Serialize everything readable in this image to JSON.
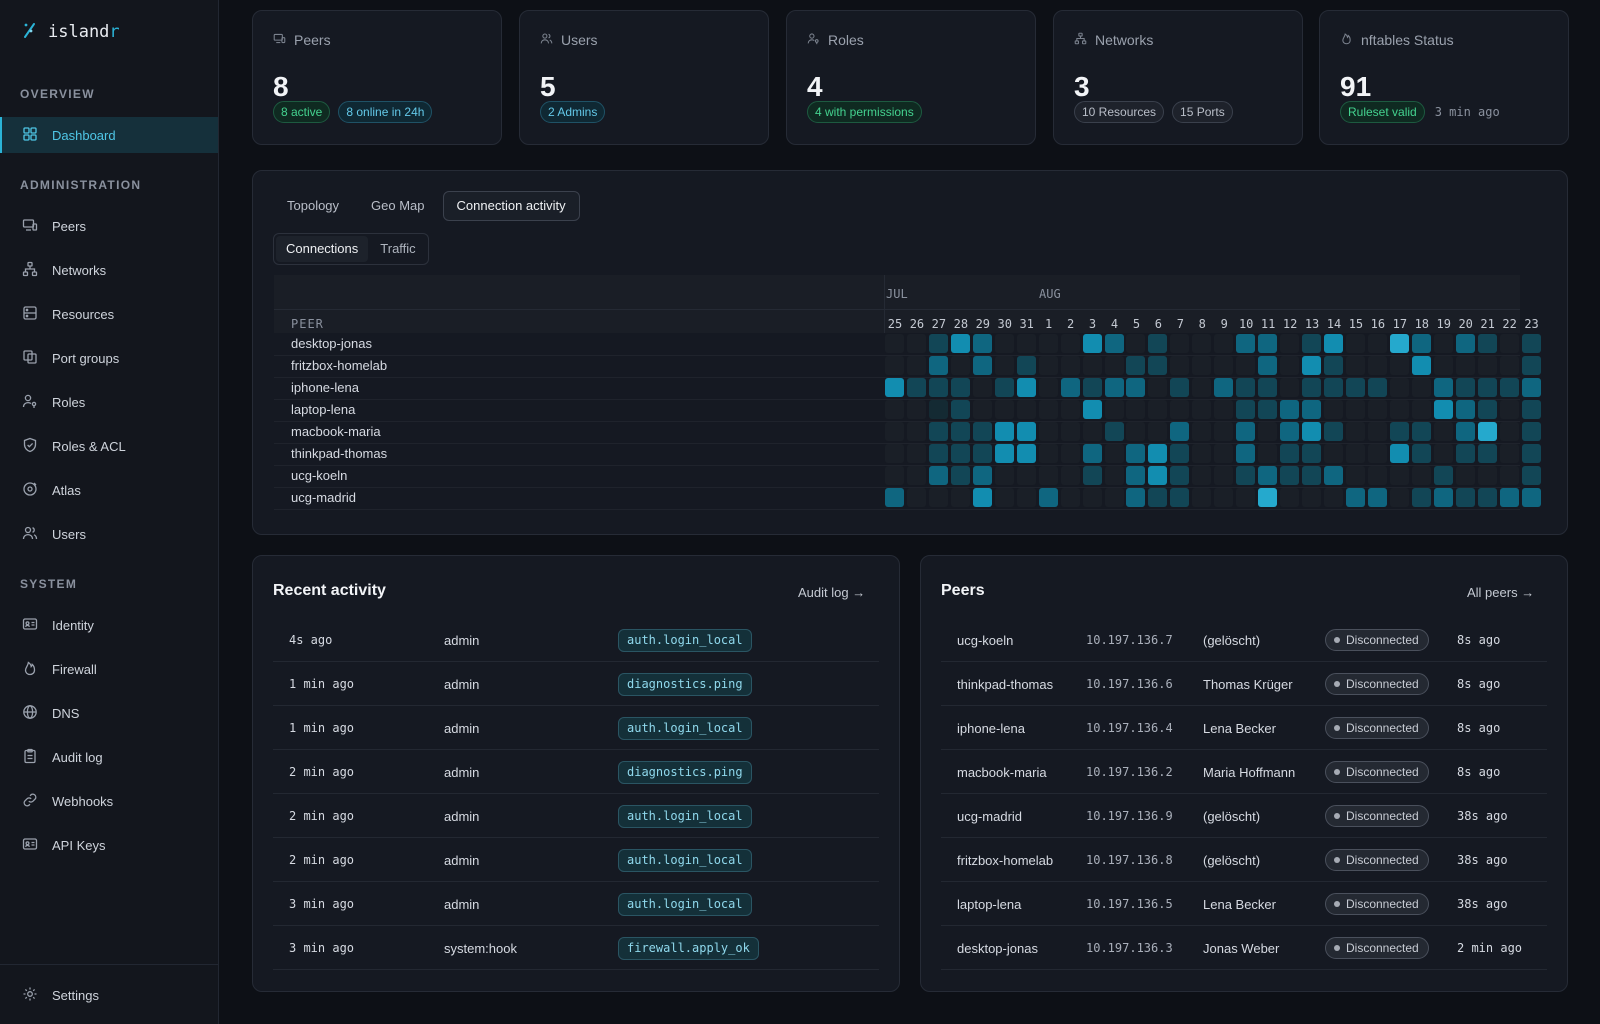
{
  "brand": {
    "name_main": "island",
    "name_accent": "r"
  },
  "nav": {
    "overview_label": "OVERVIEW",
    "admin_label": "ADMINISTRATION",
    "system_label": "SYSTEM",
    "overview": [
      {
        "label": "Dashboard",
        "icon": "grid-icon"
      }
    ],
    "admin": [
      {
        "label": "Peers",
        "icon": "devices-icon"
      },
      {
        "label": "Networks",
        "icon": "network-icon"
      },
      {
        "label": "Resources",
        "icon": "server-icon"
      },
      {
        "label": "Port groups",
        "icon": "copy-icon"
      },
      {
        "label": "Roles",
        "icon": "user-key-icon"
      },
      {
        "label": "Roles & ACL",
        "icon": "shield-icon"
      },
      {
        "label": "Atlas",
        "icon": "globe-dot-icon"
      },
      {
        "label": "Users",
        "icon": "users-icon"
      }
    ],
    "system": [
      {
        "label": "Identity",
        "icon": "id-card-icon"
      },
      {
        "label": "Firewall",
        "icon": "flame-icon"
      },
      {
        "label": "DNS",
        "icon": "globe-icon"
      },
      {
        "label": "Audit log",
        "icon": "clipboard-icon"
      },
      {
        "label": "Webhooks",
        "icon": "link-icon"
      },
      {
        "label": "API Keys",
        "icon": "id-card-icon"
      }
    ],
    "settings_label": "Settings"
  },
  "stats": [
    {
      "title": "Peers",
      "icon": "devices-icon",
      "value": "8",
      "badges": [
        {
          "text": "8 active",
          "kind": "green"
        },
        {
          "text": "8 online in 24h",
          "kind": "blue"
        }
      ],
      "time": ""
    },
    {
      "title": "Users",
      "icon": "users-icon",
      "value": "5",
      "badges": [
        {
          "text": "2 Admins",
          "kind": "blue"
        }
      ],
      "time": ""
    },
    {
      "title": "Roles",
      "icon": "user-key-icon",
      "value": "4",
      "badges": [
        {
          "text": "4 with permissions",
          "kind": "green"
        }
      ],
      "time": ""
    },
    {
      "title": "Networks",
      "icon": "network-icon",
      "value": "3",
      "badges": [
        {
          "text": "10 Resources",
          "kind": "gray"
        },
        {
          "text": "15 Ports",
          "kind": "gray"
        }
      ],
      "time": ""
    },
    {
      "title": "nftables Status",
      "icon": "flame-icon",
      "value": "91",
      "badges": [
        {
          "text": "Ruleset valid",
          "kind": "green"
        }
      ],
      "time": "3 min ago"
    }
  ],
  "tabs": [
    "Topology",
    "Geo Map",
    "Connection activity"
  ],
  "subtabs": [
    "Connections",
    "Traffic"
  ],
  "heatmap": {
    "peer_header": "PEER",
    "months": [
      "JUL",
      "AUG"
    ],
    "days": [
      "25",
      "26",
      "27",
      "28",
      "29",
      "30",
      "31",
      "1",
      "2",
      "3",
      "4",
      "5",
      "6",
      "7",
      "8",
      "9",
      "10",
      "11",
      "12",
      "13",
      "14",
      "15",
      "16",
      "17",
      "18",
      "19",
      "20",
      "21",
      "22",
      "23"
    ],
    "peers": [
      "desktop-jonas",
      "fritzbox-homelab",
      "iphone-lena",
      "laptop-lena",
      "macbook-maria",
      "thinkpad-thomas",
      "ucg-koeln",
      "ucg-madrid"
    ],
    "levels": [
      [
        0,
        0,
        2,
        4,
        3,
        0,
        0,
        0,
        0,
        4,
        3,
        0,
        2,
        0,
        0,
        0,
        3,
        3,
        0,
        2,
        4,
        0,
        0,
        5,
        3,
        0,
        3,
        2,
        0,
        2
      ],
      [
        0,
        0,
        3,
        0,
        3,
        0,
        2,
        0,
        0,
        0,
        0,
        2,
        2,
        0,
        0,
        0,
        0,
        3,
        0,
        4,
        2,
        0,
        0,
        0,
        4,
        0,
        0,
        0,
        0,
        2
      ],
      [
        4,
        2,
        2,
        2,
        0,
        2,
        4,
        0,
        3,
        2,
        3,
        3,
        0,
        2,
        0,
        3,
        2,
        2,
        0,
        2,
        2,
        2,
        2,
        0,
        0,
        3,
        2,
        2,
        2,
        3
      ],
      [
        0,
        0,
        1,
        2,
        0,
        0,
        0,
        0,
        0,
        4,
        0,
        0,
        0,
        0,
        0,
        0,
        2,
        2,
        3,
        3,
        0,
        0,
        0,
        0,
        0,
        4,
        3,
        2,
        0,
        2
      ],
      [
        0,
        0,
        2,
        2,
        2,
        4,
        4,
        0,
        0,
        0,
        2,
        0,
        0,
        3,
        0,
        0,
        3,
        0,
        3,
        4,
        2,
        0,
        0,
        2,
        2,
        0,
        3,
        5,
        0,
        2
      ],
      [
        0,
        0,
        2,
        2,
        2,
        4,
        4,
        0,
        0,
        3,
        0,
        3,
        4,
        2,
        0,
        0,
        3,
        0,
        2,
        2,
        0,
        0,
        0,
        4,
        2,
        0,
        2,
        2,
        0,
        2
      ],
      [
        0,
        0,
        3,
        2,
        3,
        0,
        0,
        0,
        0,
        2,
        0,
        3,
        4,
        2,
        0,
        0,
        2,
        3,
        2,
        2,
        3,
        0,
        0,
        0,
        0,
        2,
        0,
        0,
        0,
        2
      ],
      [
        3,
        0,
        0,
        0,
        4,
        0,
        0,
        3,
        0,
        0,
        0,
        3,
        2,
        2,
        0,
        0,
        0,
        5,
        0,
        0,
        0,
        3,
        3,
        0,
        2,
        3,
        2,
        2,
        3,
        3
      ]
    ]
  },
  "activity": {
    "title": "Recent activity",
    "link": "Audit log →",
    "rows": [
      {
        "time": "4s ago",
        "user": "admin",
        "action": "auth.login_local"
      },
      {
        "time": "1 min ago",
        "user": "admin",
        "action": "diagnostics.ping"
      },
      {
        "time": "1 min ago",
        "user": "admin",
        "action": "auth.login_local"
      },
      {
        "time": "2 min ago",
        "user": "admin",
        "action": "diagnostics.ping"
      },
      {
        "time": "2 min ago",
        "user": "admin",
        "action": "auth.login_local"
      },
      {
        "time": "2 min ago",
        "user": "admin",
        "action": "auth.login_local"
      },
      {
        "time": "3 min ago",
        "user": "admin",
        "action": "auth.login_local"
      },
      {
        "time": "3 min ago",
        "user": "system:hook",
        "action": "firewall.apply_ok"
      }
    ]
  },
  "peers_panel": {
    "title": "Peers",
    "link": "All peers →",
    "rows": [
      {
        "name": "ucg-koeln",
        "ip": "10.197.136.7",
        "owner": "(gelöscht)",
        "status": "Disconnected",
        "seen": "8s ago"
      },
      {
        "name": "thinkpad-thomas",
        "ip": "10.197.136.6",
        "owner": "Thomas Krüger",
        "status": "Disconnected",
        "seen": "8s ago"
      },
      {
        "name": "iphone-lena",
        "ip": "10.197.136.4",
        "owner": "Lena Becker",
        "status": "Disconnected",
        "seen": "8s ago"
      },
      {
        "name": "macbook-maria",
        "ip": "10.197.136.2",
        "owner": "Maria Hoffmann",
        "status": "Disconnected",
        "seen": "8s ago"
      },
      {
        "name": "ucg-madrid",
        "ip": "10.197.136.9",
        "owner": "(gelöscht)",
        "status": "Disconnected",
        "seen": "38s ago"
      },
      {
        "name": "fritzbox-homelab",
        "ip": "10.197.136.8",
        "owner": "(gelöscht)",
        "status": "Disconnected",
        "seen": "38s ago"
      },
      {
        "name": "laptop-lena",
        "ip": "10.197.136.5",
        "owner": "Lena Becker",
        "status": "Disconnected",
        "seen": "38s ago"
      },
      {
        "name": "desktop-jonas",
        "ip": "10.197.136.3",
        "owner": "Jonas Weber",
        "status": "Disconnected",
        "seen": "2 min ago"
      }
    ]
  },
  "colors": {
    "accent": "#2bb3d6",
    "heat_levels": [
      "#1a1f27",
      "#142a33",
      "#124656",
      "#0f6680",
      "#128db0",
      "#25a9cd"
    ]
  }
}
